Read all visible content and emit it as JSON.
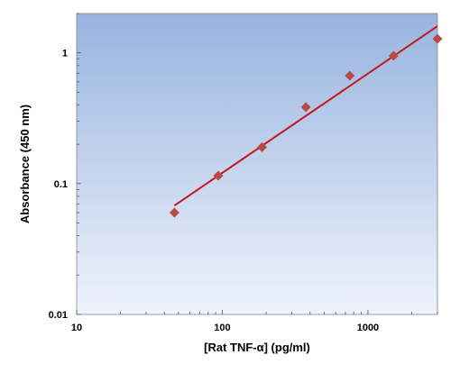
{
  "chart_data": {
    "type": "scatter",
    "title": "",
    "xlabel": "[Rat TNF-α] (pg/ml)",
    "ylabel": "Absorbance (450 nm)",
    "x_scale": "log",
    "y_scale": "log",
    "xlim": [
      10,
      3000
    ],
    "ylim": [
      0.01,
      2
    ],
    "x_ticks": [
      10,
      100,
      1000
    ],
    "x_tick_labels": [
      "10",
      "100",
      "1000"
    ],
    "y_ticks": [
      0.01,
      0.1,
      1
    ],
    "y_tick_labels": [
      "0.01",
      "0.1",
      "1"
    ],
    "grid": false,
    "legend": "none",
    "points": [
      {
        "x": 46.9,
        "y": 0.06
      },
      {
        "x": 93.8,
        "y": 0.115
      },
      {
        "x": 187.5,
        "y": 0.19
      },
      {
        "x": 375,
        "y": 0.385
      },
      {
        "x": 750,
        "y": 0.67
      },
      {
        "x": 1500,
        "y": 0.95
      },
      {
        "x": 3000,
        "y": 1.28
      }
    ],
    "fit_line": {
      "x": [
        46.9,
        3000
      ],
      "y": [
        0.068,
        1.6
      ]
    },
    "colors": {
      "marker": "#b84a44",
      "line": "#c0191b",
      "plot_bg_top": "#98b4e0",
      "plot_bg_bottom": "#eef3fb"
    }
  }
}
